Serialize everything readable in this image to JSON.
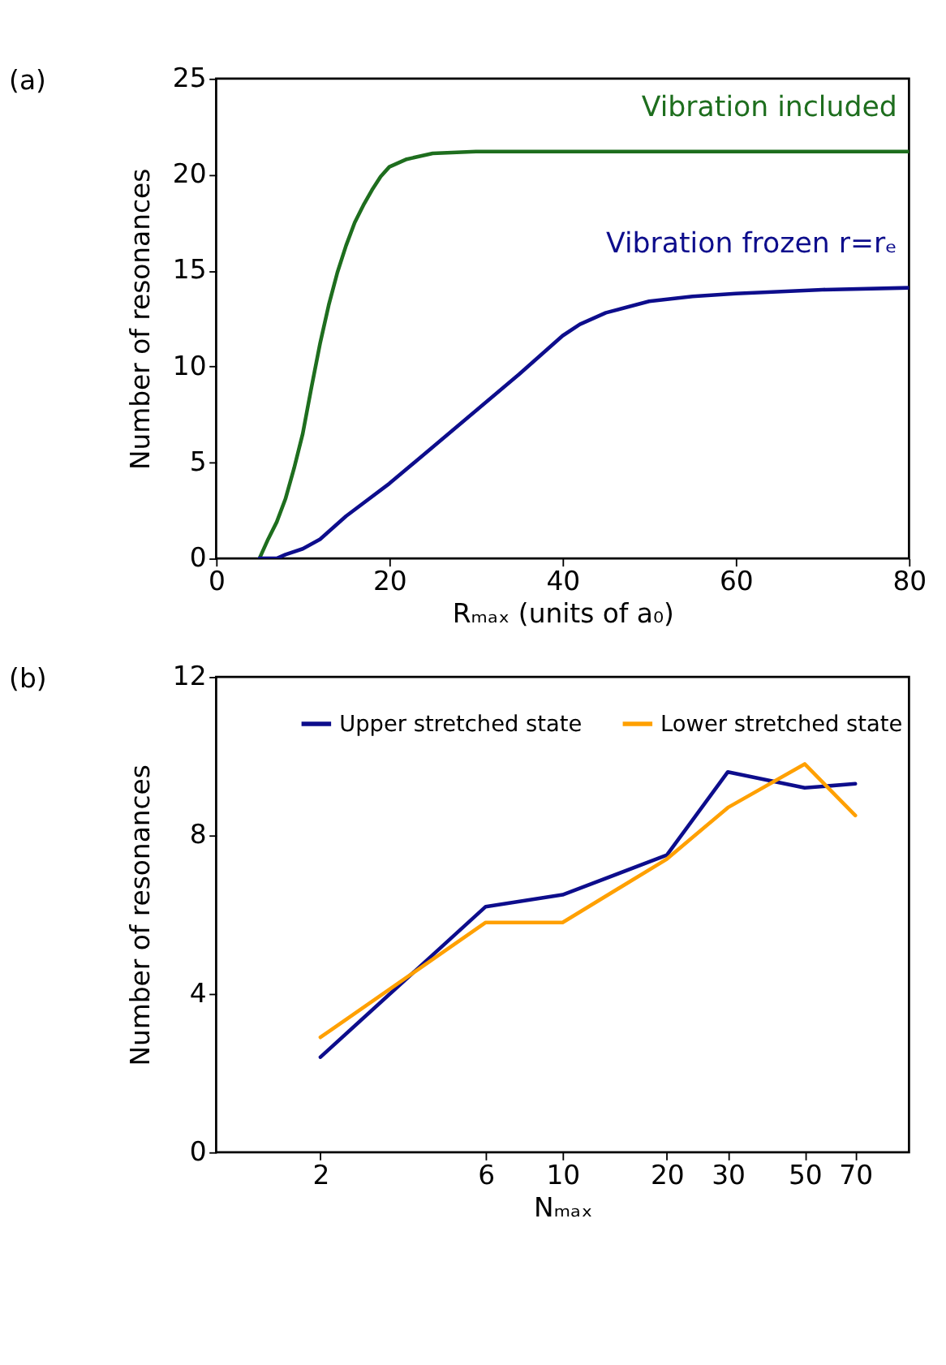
{
  "chart_data": [
    {
      "type": "line",
      "title": "(a)",
      "xlabel": "Rₘₐₓ (units of a₀)",
      "ylabel": "Number of resonances",
      "xlim": [
        0,
        80
      ],
      "xticks": [
        0,
        20,
        40,
        60,
        80
      ],
      "ylim": [
        0,
        25
      ],
      "yticks": [
        0,
        5,
        10,
        15,
        20,
        25
      ],
      "line_style": "solid",
      "series": [
        {
          "name": "Vibration included",
          "color": "#1e6e1e",
          "x": [
            5,
            6,
            7,
            8,
            9,
            10,
            11,
            12,
            13,
            14,
            15,
            16,
            17,
            18,
            19,
            20,
            22,
            25,
            30,
            40,
            60,
            80
          ],
          "values": [
            0,
            1.0,
            1.9,
            3.1,
            4.7,
            6.5,
            8.9,
            11.2,
            13.2,
            14.9,
            16.3,
            17.5,
            18.4,
            19.2,
            19.9,
            20.4,
            20.8,
            21.1,
            21.2,
            21.2,
            21.2,
            21.2
          ]
        },
        {
          "name": "Vibration frozen r=rₑ",
          "color": "#0d0d8c",
          "x": [
            5,
            7,
            8,
            10,
            12,
            15,
            20,
            25,
            30,
            35,
            40,
            42,
            45,
            50,
            55,
            60,
            70,
            80
          ],
          "values": [
            0,
            0,
            0.2,
            0.5,
            1.0,
            2.2,
            3.9,
            5.8,
            7.7,
            9.6,
            11.6,
            12.2,
            12.8,
            13.4,
            13.65,
            13.8,
            14.0,
            14.1
          ]
        }
      ]
    },
    {
      "type": "line",
      "title": "(b)",
      "xlabel": "Nₘₐₓ",
      "ylabel": "Number of resonances",
      "log": "x",
      "xlim": [
        1,
        100
      ],
      "xticks": [
        2,
        6,
        10,
        20,
        30,
        50,
        70
      ],
      "ylim": [
        0,
        12
      ],
      "yticks": [
        0,
        4,
        8,
        12
      ],
      "legend": "top",
      "line_style": "solid",
      "x": [
        2,
        6,
        10,
        20,
        30,
        50,
        70
      ],
      "series": [
        {
          "name": "Upper stretched state",
          "color": "#0d0d8c",
          "values": [
            2.4,
            6.2,
            6.5,
            7.5,
            9.6,
            9.2,
            9.3
          ]
        },
        {
          "name": "Lower stretched state",
          "color": "#ffa000",
          "values": [
            2.9,
            5.8,
            5.8,
            7.4,
            8.7,
            9.8,
            8.5
          ]
        }
      ]
    }
  ]
}
